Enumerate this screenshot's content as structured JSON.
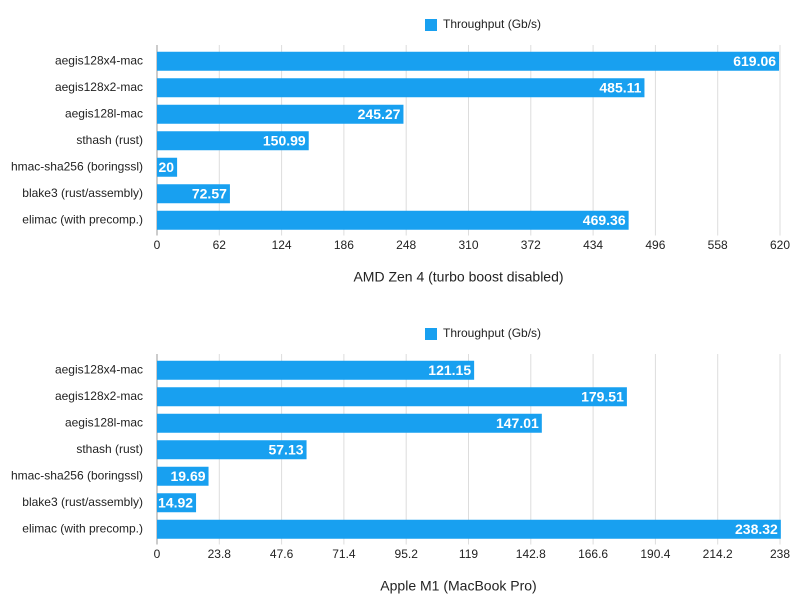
{
  "chart_data": [
    {
      "type": "bar",
      "orientation": "horizontal",
      "x_label": "AMD Zen 4 (turbo boost disabled)",
      "categories": [
        "aegis128x4-mac",
        "aegis128x2-mac",
        "aegis128l-mac",
        "sthash (rust)",
        "hmac-sha256 (boringssl)",
        "blake3 (rust/assembly)",
        "elimac (with precomp.)"
      ],
      "series": [
        {
          "name": "Throughput (Gb/s)",
          "color": "#18a0f0",
          "values": [
            619.06,
            485.11,
            245.27,
            150.99,
            20,
            72.57,
            469.36
          ]
        }
      ],
      "xlim": [
        0,
        620
      ],
      "xticks": [
        0,
        62,
        124,
        186,
        248,
        310,
        372,
        434,
        496,
        558,
        620
      ],
      "grid": true
    },
    {
      "type": "bar",
      "orientation": "horizontal",
      "x_label": "Apple M1 (MacBook Pro)",
      "categories": [
        "aegis128x4-mac",
        "aegis128x2-mac",
        "aegis128l-mac",
        "sthash (rust)",
        "hmac-sha256 (boringssl)",
        "blake3 (rust/assembly)",
        "elimac (with precomp.)"
      ],
      "series": [
        {
          "name": "Throughput (Gb/s)",
          "color": "#18a0f0",
          "values": [
            121.15,
            179.51,
            147.01,
            57.13,
            19.69,
            14.92,
            238.32
          ]
        }
      ],
      "xlim": [
        0,
        238
      ],
      "xticks": [
        0,
        23.8,
        47.6,
        71.4,
        95.2,
        119,
        142.8,
        166.6,
        190.4,
        214.2,
        238
      ],
      "grid": true
    }
  ]
}
